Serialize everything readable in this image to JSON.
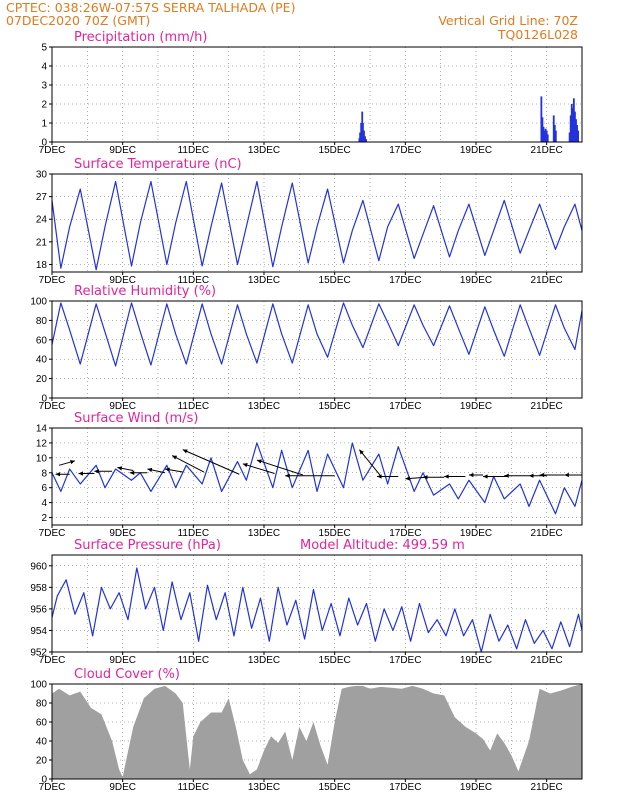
{
  "header": {
    "line1_left": "CPTEC:   038:26W-07:57S   SERRA TALHADA (PE)",
    "line2_left": "07DEC2020 70Z (GMT)",
    "line1_right": "Vertical Grid Line: 70Z",
    "line2_right": "TQ0126L028"
  },
  "colors": {
    "header": "#e07b1e",
    "title": "#e0259b",
    "line": "#2233dd",
    "bar": "#2233dd",
    "cloud": "#a0a0a0",
    "arrow": "#000000"
  },
  "x_ticks": [
    "7DEC",
    "9DEC",
    "11DEC",
    "13DEC",
    "15DEC",
    "17DEC",
    "19DEC",
    "21DEC"
  ],
  "chart_data": [
    {
      "id": "precip",
      "type": "bar",
      "title": "Precipitation (mm/h)",
      "ylim": [
        0,
        5
      ],
      "yticks": [
        0,
        1,
        2,
        3,
        4,
        5
      ],
      "x_range_days": [
        7,
        22
      ],
      "points": [
        [
          15.7,
          0.2
        ],
        [
          15.72,
          0.5
        ],
        [
          15.75,
          1.0
        ],
        [
          15.78,
          1.6
        ],
        [
          15.8,
          1.0
        ],
        [
          15.83,
          0.6
        ],
        [
          15.86,
          0.3
        ],
        [
          15.89,
          0.15
        ],
        [
          20.85,
          2.4
        ],
        [
          20.88,
          1.3
        ],
        [
          20.91,
          0.8
        ],
        [
          20.94,
          0.6
        ],
        [
          20.97,
          0.7
        ],
        [
          21.0,
          0.6
        ],
        [
          21.03,
          0.4
        ],
        [
          21.2,
          1.4
        ],
        [
          21.23,
          0.9
        ],
        [
          21.26,
          0.6
        ],
        [
          21.65,
          0.5
        ],
        [
          21.68,
          1.4
        ],
        [
          21.71,
          2.0
        ],
        [
          21.74,
          1.8
        ],
        [
          21.77,
          2.3
        ],
        [
          21.8,
          1.6
        ],
        [
          21.83,
          1.2
        ],
        [
          21.86,
          0.9
        ],
        [
          21.89,
          0.6
        ]
      ]
    },
    {
      "id": "temp",
      "type": "line",
      "title": "Surface Temperature (nC)",
      "ylim": [
        17,
        30
      ],
      "yticks": [
        18,
        21,
        24,
        27,
        30
      ],
      "x_range_days": [
        7,
        22
      ],
      "series": [
        {
          "x": [
            7.0,
            7.25,
            7.5,
            7.8,
            8.25,
            8.5,
            8.8,
            9.25,
            9.5,
            9.8,
            10.25,
            10.5,
            10.8,
            11.25,
            11.5,
            11.8,
            12.25,
            12.5,
            12.8,
            13.25,
            13.5,
            13.8,
            14.25,
            14.5,
            14.8,
            15.25,
            15.5,
            15.8,
            16.25,
            16.5,
            16.8,
            17.25,
            17.5,
            17.8,
            18.25,
            18.5,
            18.8,
            19.25,
            19.5,
            19.8,
            20.25,
            20.5,
            20.8,
            21.25,
            21.5,
            21.8,
            22.0
          ],
          "y": [
            26.5,
            17.5,
            23,
            28,
            17.3,
            23,
            29,
            17.8,
            23.5,
            29,
            18,
            23.5,
            29,
            17.8,
            23,
            28.8,
            18,
            23,
            29,
            17.7,
            23,
            28.8,
            18.2,
            23,
            28,
            18.2,
            22.5,
            26.5,
            18.5,
            23,
            26,
            18.8,
            22,
            25.8,
            19,
            22.5,
            26,
            19.2,
            22.5,
            26.5,
            19.5,
            22.5,
            26,
            20,
            23,
            26,
            22.5
          ]
        }
      ]
    },
    {
      "id": "rh",
      "type": "line",
      "title": "Relative Humidity (%)",
      "ylim": [
        0,
        100
      ],
      "yticks": [
        0,
        20,
        40,
        60,
        80,
        100
      ],
      "x_range_days": [
        7,
        22
      ],
      "series": [
        {
          "x": [
            7.0,
            7.25,
            7.5,
            7.8,
            8.25,
            8.5,
            8.8,
            9.25,
            9.5,
            9.8,
            10.25,
            10.5,
            10.8,
            11.25,
            11.5,
            11.8,
            12.25,
            12.5,
            12.8,
            13.25,
            13.5,
            13.8,
            14.25,
            14.5,
            14.8,
            15.25,
            15.5,
            15.8,
            16.25,
            16.5,
            16.8,
            17.25,
            17.5,
            17.8,
            18.25,
            18.5,
            18.8,
            19.25,
            19.5,
            19.8,
            20.25,
            20.5,
            20.8,
            21.25,
            21.5,
            21.8,
            22.0
          ],
          "y": [
            55,
            98,
            70,
            35,
            97,
            68,
            33,
            98,
            68,
            34,
            97,
            66,
            35,
            97,
            66,
            35,
            96,
            66,
            36,
            97,
            66,
            36,
            96,
            66,
            42,
            98,
            75,
            52,
            97,
            78,
            54,
            96,
            75,
            54,
            95,
            72,
            45,
            94,
            70,
            43,
            96,
            72,
            44,
            96,
            72,
            50,
            90
          ]
        }
      ]
    },
    {
      "id": "wind",
      "type": "line",
      "title": "Surface Wind (m/s)",
      "ylim": [
        1,
        14
      ],
      "yticks": [
        2,
        4,
        6,
        8,
        10,
        12,
        14
      ],
      "x_range_days": [
        7,
        22
      ],
      "series": [
        {
          "x": [
            7.0,
            7.25,
            7.5,
            7.8,
            8.25,
            8.5,
            8.8,
            9.25,
            9.5,
            9.8,
            10.25,
            10.5,
            10.8,
            11.25,
            11.5,
            11.8,
            12.25,
            12.5,
            12.8,
            13.25,
            13.5,
            13.8,
            14.25,
            14.5,
            14.8,
            15.25,
            15.5,
            15.8,
            16.25,
            16.5,
            16.8,
            17.25,
            17.5,
            17.8,
            18.25,
            18.5,
            18.8,
            19.25,
            19.5,
            19.8,
            20.25,
            20.5,
            20.8,
            21.25,
            21.5,
            21.8,
            22.0
          ],
          "y": [
            8,
            5.5,
            8.5,
            6.5,
            9,
            6,
            8.5,
            7,
            8,
            5.5,
            9,
            6,
            9,
            6.5,
            10,
            5.5,
            9.5,
            7,
            12,
            6,
            11,
            6,
            11,
            5.5,
            10.5,
            6,
            12,
            7,
            10.5,
            6.5,
            11.5,
            5.5,
            8,
            5,
            6.5,
            4.5,
            7,
            4,
            7.5,
            4.5,
            6.5,
            3.5,
            7,
            2.5,
            6,
            3.5,
            7
          ]
        }
      ],
      "arrows": [
        {
          "x": 7.2,
          "y": 9.0,
          "dx": 0.45,
          "dy": 0.6
        },
        {
          "x": 7.5,
          "y": 7.8,
          "dx": -0.4,
          "dy": 0.0
        },
        {
          "x": 8.2,
          "y": 7.9,
          "dx": -0.45,
          "dy": 0.0
        },
        {
          "x": 8.7,
          "y": 8.2,
          "dx": -0.5,
          "dy": 0.0
        },
        {
          "x": 9.3,
          "y": 8.3,
          "dx": -0.45,
          "dy": 0.4
        },
        {
          "x": 9.7,
          "y": 8.0,
          "dx": -0.5,
          "dy": 0.0
        },
        {
          "x": 10.2,
          "y": 8.0,
          "dx": -0.5,
          "dy": 0.5
        },
        {
          "x": 10.7,
          "y": 8.1,
          "dx": -0.5,
          "dy": 0.4
        },
        {
          "x": 11.3,
          "y": 8.1,
          "dx": -0.9,
          "dy": 2.2
        },
        {
          "x": 12.3,
          "y": 7.8,
          "dx": -1.6,
          "dy": 3.3
        },
        {
          "x": 13.3,
          "y": 7.9,
          "dx": -0.9,
          "dy": 1.3
        },
        {
          "x": 14.1,
          "y": 7.7,
          "dx": -1.3,
          "dy": 2.0
        },
        {
          "x": 15.0,
          "y": 7.6,
          "dx": -1.4,
          "dy": 0.0
        },
        {
          "x": 16.3,
          "y": 7.6,
          "dx": -0.6,
          "dy": 3.5
        },
        {
          "x": 16.8,
          "y": 7.5,
          "dx": -0.6,
          "dy": 0.0
        },
        {
          "x": 17.6,
          "y": 7.4,
          "dx": -0.6,
          "dy": -0.2
        },
        {
          "x": 18.1,
          "y": 7.4,
          "dx": -0.6,
          "dy": 0.0
        },
        {
          "x": 18.7,
          "y": 7.5,
          "dx": -0.6,
          "dy": 0.0
        },
        {
          "x": 19.2,
          "y": 7.7,
          "dx": -0.4,
          "dy": 0.0
        },
        {
          "x": 19.9,
          "y": 7.5,
          "dx": -0.7,
          "dy": 0.0
        },
        {
          "x": 20.5,
          "y": 7.6,
          "dx": -0.7,
          "dy": 0.0
        },
        {
          "x": 21.0,
          "y": 7.6,
          "dx": -0.5,
          "dy": 0.0
        },
        {
          "x": 21.5,
          "y": 7.7,
          "dx": -0.7,
          "dy": 0.0
        },
        {
          "x": 22.0,
          "y": 7.7,
          "dx": -0.5,
          "dy": 0.0
        }
      ]
    },
    {
      "id": "pressure",
      "type": "line",
      "title": "Surface Pressure (hPa)",
      "annotation": "Model Altitude: 499.59 m",
      "ylim": [
        952,
        961
      ],
      "yticks": [
        952,
        954,
        956,
        958,
        960
      ],
      "x_range_days": [
        7,
        22
      ],
      "series": [
        {
          "x": [
            7.0,
            7.15,
            7.4,
            7.65,
            7.9,
            8.15,
            8.4,
            8.65,
            8.9,
            9.15,
            9.4,
            9.65,
            9.9,
            10.15,
            10.4,
            10.65,
            10.9,
            11.15,
            11.4,
            11.65,
            11.9,
            12.15,
            12.4,
            12.65,
            12.9,
            13.15,
            13.4,
            13.65,
            13.9,
            14.15,
            14.4,
            14.65,
            14.9,
            15.15,
            15.4,
            15.65,
            15.9,
            16.15,
            16.4,
            16.65,
            16.9,
            17.15,
            17.4,
            17.65,
            17.9,
            18.15,
            18.4,
            18.65,
            18.9,
            19.15,
            19.4,
            19.65,
            19.9,
            20.15,
            20.4,
            20.65,
            20.9,
            21.15,
            21.4,
            21.65,
            21.9,
            22.0
          ],
          "y": [
            955.2,
            957.2,
            958.7,
            955.5,
            957.5,
            953.5,
            958.0,
            956.0,
            957.5,
            955.0,
            959.8,
            956.0,
            958.0,
            954.0,
            958.5,
            955.0,
            957.5,
            953.0,
            958.2,
            955.0,
            957.5,
            953.5,
            958.0,
            954.2,
            957.0,
            953.0,
            958.0,
            954.5,
            956.8,
            953.2,
            957.8,
            954.0,
            956.5,
            953.5,
            957.0,
            954.5,
            956.5,
            953.0,
            956.0,
            954.0,
            956.2,
            953.0,
            956.5,
            953.8,
            955.0,
            953.5,
            956.0,
            953.5,
            955.0,
            952.0,
            955.5,
            953.0,
            954.5,
            952.3,
            955.0,
            952.8,
            954.0,
            952.3,
            954.8,
            952.5,
            955.5,
            954.0
          ]
        }
      ]
    },
    {
      "id": "cloud",
      "type": "area",
      "title": "Cloud Cover (%)",
      "ylim": [
        0,
        100
      ],
      "yticks": [
        0,
        20,
        40,
        60,
        80,
        100
      ],
      "x_range_days": [
        7,
        22
      ],
      "series": [
        {
          "x": [
            7.0,
            7.2,
            7.5,
            7.8,
            8.1,
            8.4,
            8.7,
            8.9,
            9.0,
            9.1,
            9.3,
            9.6,
            9.9,
            10.2,
            10.5,
            10.7,
            10.9,
            11.0,
            11.2,
            11.5,
            11.8,
            12.0,
            12.2,
            12.4,
            12.6,
            12.8,
            13.0,
            13.2,
            13.4,
            13.6,
            13.8,
            14.0,
            14.2,
            14.4,
            14.6,
            14.8,
            15.0,
            15.2,
            15.4,
            15.6,
            15.8,
            16.0,
            16.3,
            16.6,
            16.9,
            17.2,
            17.5,
            17.8,
            18.1,
            18.4,
            18.7,
            19.0,
            19.2,
            19.4,
            19.6,
            19.8,
            20.0,
            20.2,
            20.5,
            20.8,
            21.1,
            21.4,
            21.7,
            22.0
          ],
          "y": [
            90,
            95,
            88,
            92,
            75,
            68,
            40,
            10,
            2,
            20,
            55,
            85,
            95,
            98,
            90,
            80,
            10,
            45,
            60,
            70,
            70,
            85,
            55,
            20,
            5,
            10,
            30,
            45,
            38,
            50,
            20,
            55,
            40,
            60,
            35,
            15,
            60,
            95,
            97,
            98,
            98,
            95,
            97,
            96,
            95,
            98,
            95,
            90,
            88,
            65,
            55,
            48,
            42,
            30,
            48,
            38,
            25,
            8,
            40,
            95,
            90,
            93,
            97,
            100
          ]
        }
      ]
    }
  ]
}
